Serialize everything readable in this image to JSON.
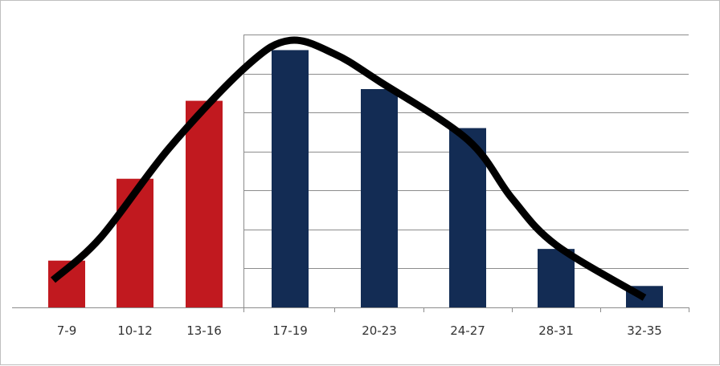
{
  "chart_data": {
    "type": "bar",
    "categories": [
      "7-9",
      "10-12",
      "13-16",
      "17-19",
      "20-23",
      "24-27",
      "28-31",
      "32-35"
    ],
    "values": [
      1.2,
      3.3,
      5.3,
      6.6,
      5.6,
      4.6,
      1.5,
      0.55
    ],
    "bar_colors": [
      "#c1191f",
      "#c1191f",
      "#c1191f",
      "#132c54",
      "#132c54",
      "#132c54",
      "#132c54",
      "#132c54"
    ],
    "ylim": [
      0,
      7
    ],
    "grid": true,
    "title": "",
    "xlabel": "",
    "ylabel": "",
    "curve": {
      "type": "normal-distribution",
      "color": "#000000",
      "points": [
        {
          "x": -0.2,
          "y": 0.7
        },
        {
          "x": 0.5,
          "y": 1.8
        },
        {
          "x": 1.5,
          "y": 4.1
        },
        {
          "x": 2.5,
          "y": 6.2
        },
        {
          "x": 3.0,
          "y": 6.85
        },
        {
          "x": 3.5,
          "y": 6.5
        },
        {
          "x": 4.0,
          "y": 5.8
        },
        {
          "x": 5.0,
          "y": 4.3
        },
        {
          "x": 5.5,
          "y": 2.8
        },
        {
          "x": 6.0,
          "y": 1.6
        },
        {
          "x": 7.0,
          "y": 0.25
        }
      ]
    }
  }
}
